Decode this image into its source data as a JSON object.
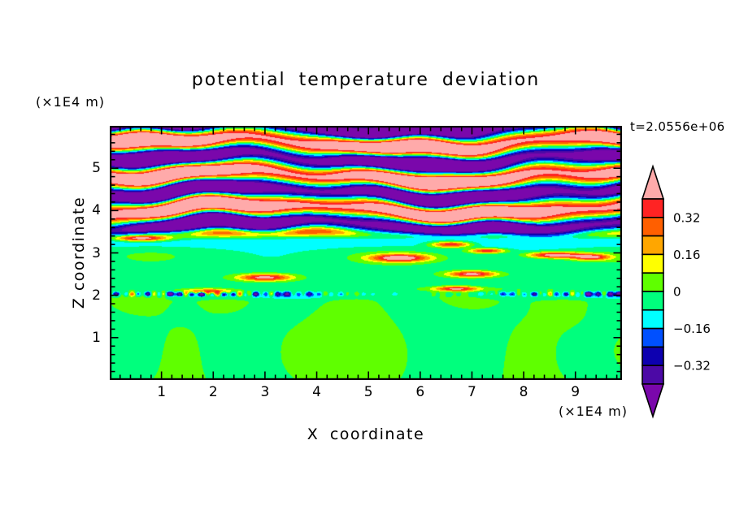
{
  "chart_data": {
    "type": "filled-contour",
    "title": "potential temperature deviation",
    "time_annotation": "t=2.0556e+06",
    "xlabel": "X coordinate",
    "ylabel": "Z coordinate",
    "x_units": "(×1E4 m)",
    "z_units": "(×1E4 m)",
    "x_range": [
      0,
      9.9
    ],
    "z_range": [
      0,
      6
    ],
    "x_ticks": {
      "values": [
        1,
        2,
        3,
        4,
        5,
        6,
        7,
        8,
        9
      ],
      "labels": [
        "1",
        "2",
        "3",
        "4",
        "5",
        "6",
        "7",
        "8",
        "9"
      ]
    },
    "z_ticks": {
      "values": [
        1,
        2,
        3,
        4,
        5
      ],
      "labels": [
        "1",
        "2",
        "3",
        "4",
        "5"
      ]
    },
    "minor_tick_step": 0.2,
    "grid": false,
    "contour_levels": [
      -0.4,
      -0.32,
      -0.24,
      -0.16,
      -0.08,
      0,
      0.08,
      0.16,
      0.24,
      0.32,
      0.4
    ],
    "palette": {
      "under": "#7a07ab",
      "bins_low_to_high": [
        "#4c09a6",
        "#0d00b0",
        "#0050ff",
        "#00ffff",
        "#00ff7d",
        "#5fff00",
        "#ffff00",
        "#ffa600",
        "#ff5f00",
        "#ff2323"
      ],
      "over": "#ffaaaa"
    },
    "colorbar": {
      "orientation": "vertical",
      "arrow_ends": true,
      "position": "right",
      "tick_labels": [
        {
          "value": 0.32,
          "text": "0.32"
        },
        {
          "value": 0.16,
          "text": "0.16"
        },
        {
          "value": 0,
          "text": "0"
        },
        {
          "value": -0.16,
          "text": "−0.16"
        },
        {
          "value": -0.32,
          "text": "−0.32"
        }
      ]
    },
    "field_model": {
      "description": "Above z≈3.45: horizontal wavy saturated bands alternating pink (>0.4) and purple (<−0.4) with thin rainbow transition fringes. Between z≈2.05 and 3.45: weak negative layer (spring green) with a cyan band near z≈3.26 and isolated pink/red streaks. Thin turbulent interface with navy/cyan dashes at z≈2.03. Below z≈2: weak positive (chartreuse) region with large spring-green blobs.",
      "wave": {
        "z_start": 3.45,
        "fade": 0.05,
        "wavelength": 0.78,
        "phase": 3.14159,
        "amp_base": 0.62,
        "amp_var": 0.2
      },
      "mid": {
        "base": -0.035,
        "cyan_band_z": 3.26,
        "cyan_band_w": 0.16,
        "cyan_depth": 0.115
      },
      "interface": {
        "z": 2.03,
        "w": 0.055,
        "bias": -0.16,
        "amp": 0.38
      },
      "bottom": {
        "base": 0.045,
        "blob_depth": 0.1
      },
      "streaks": [
        {
          "x": 0.6,
          "z": 3.35,
          "sx": 0.5,
          "sz": 0.07,
          "a": 0.62
        },
        {
          "x": 1.9,
          "z": 2.07,
          "sx": 0.45,
          "sz": 0.07,
          "a": 0.6
        },
        {
          "x": 3.0,
          "z": 2.42,
          "sx": 0.5,
          "sz": 0.08,
          "a": 0.5
        },
        {
          "x": 5.6,
          "z": 2.88,
          "sx": 0.55,
          "sz": 0.09,
          "a": 0.55
        },
        {
          "x": 6.6,
          "z": 3.2,
          "sx": 0.4,
          "sz": 0.07,
          "a": 0.5
        },
        {
          "x": 7.3,
          "z": 3.05,
          "sx": 0.35,
          "sz": 0.06,
          "a": 0.45
        },
        {
          "x": 8.6,
          "z": 2.95,
          "sx": 0.5,
          "sz": 0.07,
          "a": 0.55
        },
        {
          "x": 7.0,
          "z": 2.5,
          "sx": 0.45,
          "sz": 0.07,
          "a": 0.5
        },
        {
          "x": 6.7,
          "z": 2.15,
          "sx": 0.4,
          "sz": 0.06,
          "a": 0.5
        },
        {
          "x": 9.3,
          "z": 2.9,
          "sx": 0.35,
          "sz": 0.07,
          "a": 0.5
        }
      ]
    }
  }
}
